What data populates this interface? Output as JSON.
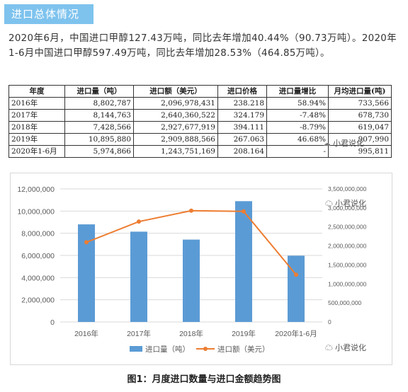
{
  "header": {
    "title": "进口总体情况"
  },
  "intro": "2020年6月，中国进口甲醇127.43万吨，同比去年增加40.44%（90.73万吨）。2020年1-6月中国进口甲醇597.49万吨，同比去年增加28.53%（464.85万吨）。",
  "table": {
    "headers": [
      "年度",
      "进口量（吨）",
      "进口额（美元）",
      "进口价格",
      "进口量增比",
      "月均进口量(吨)"
    ],
    "rows": [
      {
        "year": "2016年",
        "qty": "8,802,787",
        "amount": "2,096,978,431",
        "price": "238.218",
        "growth": "58.94%",
        "monthly": "733,566"
      },
      {
        "year": "2017年",
        "qty": "8,144,763",
        "amount": "2,640,360,522",
        "price": "324.179",
        "growth": "-7.48%",
        "monthly": "678,730"
      },
      {
        "year": "2018年",
        "qty": "7,428,566",
        "amount": "2,927,677,919",
        "price": "394.111",
        "growth": "-8.79%",
        "monthly": "619,047"
      },
      {
        "year": "2019年",
        "qty": "10,895,880",
        "amount": "2,909,888,566",
        "price": "267.063",
        "growth": "46.68%",
        "monthly": "907,990"
      },
      {
        "year": "2020年1-6月",
        "qty": "5,974,866",
        "amount": "1,243,751,169",
        "price": "208.164",
        "growth": "-",
        "monthly": "995,811"
      }
    ]
  },
  "watermark": "小君说化",
  "chart_data": {
    "type": "bar",
    "categories": [
      "2016年",
      "2017年",
      "2018年",
      "2019年",
      "2020年1-6月"
    ],
    "series": [
      {
        "name": "进口量（吨）",
        "type": "bar",
        "axis": "left",
        "color": "#5b9bd5",
        "values": [
          8802787,
          8144763,
          7428566,
          10895880,
          5974866
        ]
      },
      {
        "name": "进口额（美元）",
        "type": "line",
        "axis": "right",
        "color": "#ed7d31",
        "values": [
          2096978431,
          2640360522,
          2927677919,
          2909888566,
          1243751169
        ]
      }
    ],
    "left_axis": {
      "ylim": [
        0,
        12000000
      ],
      "ticks": [
        "0",
        "2,000,000",
        "4,000,000",
        "6,000,000",
        "8,000,000",
        "10,000,000",
        "12,000,000"
      ]
    },
    "right_axis": {
      "ylim": [
        0,
        3500000000
      ],
      "ticks": [
        "0",
        "500,000,000",
        "1,000,000,000",
        "1,500,000,000",
        "2,000,000,000",
        "2,500,000,000",
        "3,000,000,000",
        "3,500,000,000"
      ]
    },
    "legend_position": "bottom",
    "grid": true
  },
  "caption": "图1：月度进口数量与进口金额趋势图"
}
